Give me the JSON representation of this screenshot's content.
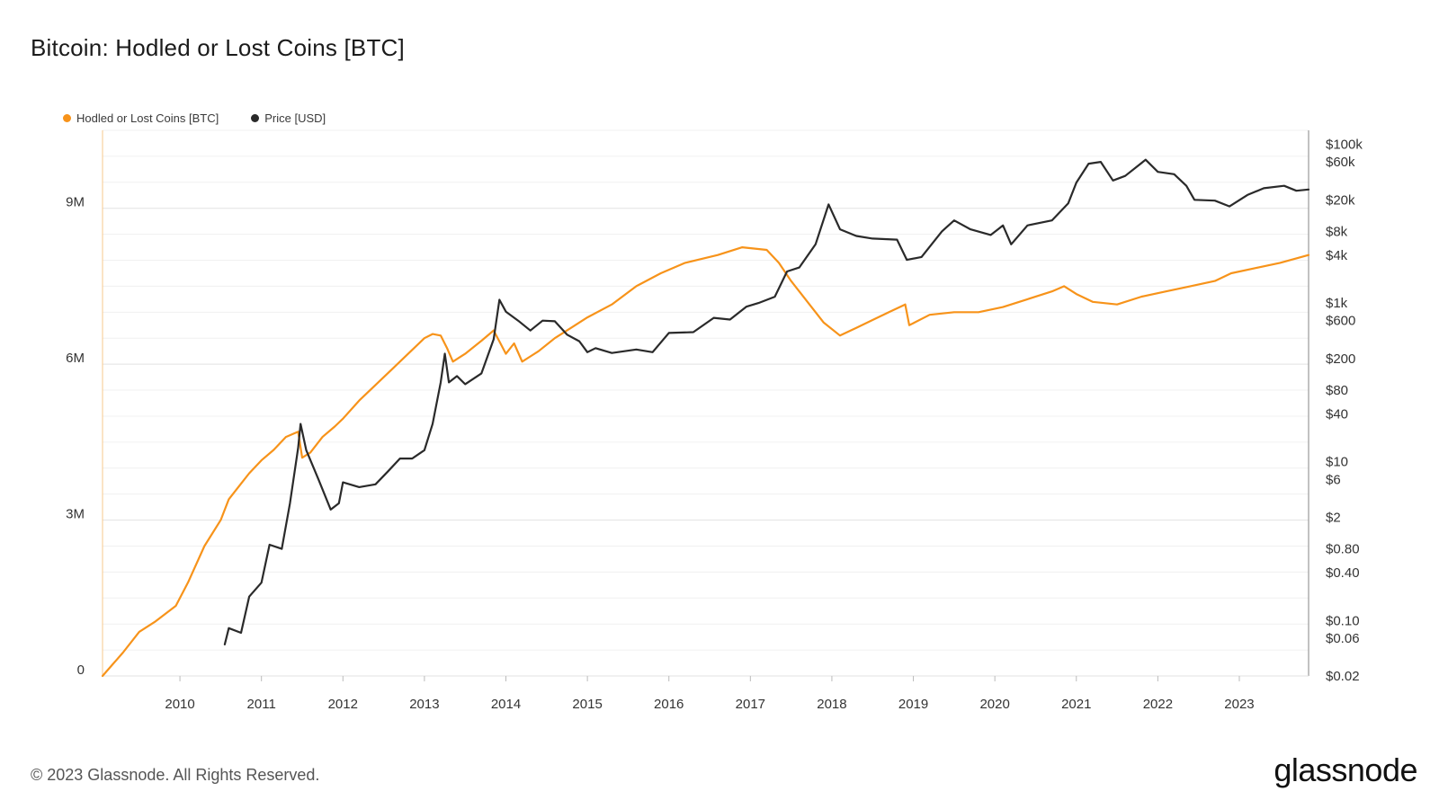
{
  "chart_data": {
    "type": "line",
    "title": "Bitcoin: Hodled or Lost Coins [BTC]",
    "grid": true,
    "legend_placement": "top-left",
    "x_ticks": [
      "2010",
      "2011",
      "2012",
      "2013",
      "2014",
      "2015",
      "2016",
      "2017",
      "2018",
      "2019",
      "2020",
      "2021",
      "2022",
      "2023"
    ],
    "x_range": [
      2009.05,
      2023.85
    ],
    "left_axis": {
      "ticks": [
        {
          "v": 0,
          "label": "0"
        },
        {
          "v": 3000000,
          "label": "3M"
        },
        {
          "v": 6000000,
          "label": "6M"
        },
        {
          "v": 9000000,
          "label": "9M"
        }
      ],
      "range": [
        0,
        10500000
      ]
    },
    "right_axis": {
      "scale": "log",
      "ticks": [
        {
          "v": 100000,
          "label": "$100k"
        },
        {
          "v": 60000,
          "label": "$60k"
        },
        {
          "v": 20000,
          "label": "$20k"
        },
        {
          "v": 8000,
          "label": "$8k"
        },
        {
          "v": 4000,
          "label": "$4k"
        },
        {
          "v": 1000,
          "label": "$1k"
        },
        {
          "v": 600,
          "label": "$600"
        },
        {
          "v": 200,
          "label": "$200"
        },
        {
          "v": 80,
          "label": "$80"
        },
        {
          "v": 40,
          "label": "$40"
        },
        {
          "v": 10,
          "label": "$10"
        },
        {
          "v": 6,
          "label": "$6"
        },
        {
          "v": 2,
          "label": "$2"
        },
        {
          "v": 0.8,
          "label": "$0.80"
        },
        {
          "v": 0.4,
          "label": "$0.40"
        },
        {
          "v": 0.1,
          "label": "$0.10"
        },
        {
          "v": 0.06,
          "label": "$0.06"
        },
        {
          "v": 0.02,
          "label": "$0.02"
        }
      ],
      "range": [
        0.02,
        150000
      ]
    },
    "series": [
      {
        "name": "Hodled or Lost Coins [BTC]",
        "color": "#f7931a",
        "axis": "left",
        "points": [
          [
            2009.05,
            0
          ],
          [
            2009.3,
            450000
          ],
          [
            2009.5,
            850000
          ],
          [
            2009.7,
            1050000
          ],
          [
            2009.95,
            1350000
          ],
          [
            2010.1,
            1800000
          ],
          [
            2010.3,
            2500000
          ],
          [
            2010.5,
            3000000
          ],
          [
            2010.6,
            3400000
          ],
          [
            2010.75,
            3700000
          ],
          [
            2010.85,
            3900000
          ],
          [
            2011.0,
            4150000
          ],
          [
            2011.15,
            4350000
          ],
          [
            2011.3,
            4600000
          ],
          [
            2011.45,
            4700000
          ],
          [
            2011.5,
            4200000
          ],
          [
            2011.6,
            4300000
          ],
          [
            2011.75,
            4600000
          ],
          [
            2011.9,
            4800000
          ],
          [
            2012.0,
            4950000
          ],
          [
            2012.2,
            5300000
          ],
          [
            2012.4,
            5600000
          ],
          [
            2012.6,
            5900000
          ],
          [
            2012.8,
            6200000
          ],
          [
            2013.0,
            6500000
          ],
          [
            2013.1,
            6580000
          ],
          [
            2013.2,
            6550000
          ],
          [
            2013.28,
            6300000
          ],
          [
            2013.35,
            6050000
          ],
          [
            2013.5,
            6200000
          ],
          [
            2013.7,
            6450000
          ],
          [
            2013.85,
            6650000
          ],
          [
            2013.9,
            6500000
          ],
          [
            2014.0,
            6200000
          ],
          [
            2014.1,
            6400000
          ],
          [
            2014.2,
            6050000
          ],
          [
            2014.3,
            6150000
          ],
          [
            2014.4,
            6250000
          ],
          [
            2014.6,
            6500000
          ],
          [
            2014.8,
            6700000
          ],
          [
            2015.0,
            6900000
          ],
          [
            2015.3,
            7150000
          ],
          [
            2015.6,
            7500000
          ],
          [
            2015.9,
            7750000
          ],
          [
            2016.2,
            7950000
          ],
          [
            2016.6,
            8100000
          ],
          [
            2016.9,
            8250000
          ],
          [
            2017.2,
            8200000
          ],
          [
            2017.35,
            7950000
          ],
          [
            2017.5,
            7600000
          ],
          [
            2017.7,
            7200000
          ],
          [
            2017.9,
            6800000
          ],
          [
            2018.1,
            6550000
          ],
          [
            2018.3,
            6700000
          ],
          [
            2018.5,
            6850000
          ],
          [
            2018.7,
            7000000
          ],
          [
            2018.9,
            7150000
          ],
          [
            2018.95,
            6750000
          ],
          [
            2019.2,
            6950000
          ],
          [
            2019.5,
            7000000
          ],
          [
            2019.8,
            7000000
          ],
          [
            2020.1,
            7100000
          ],
          [
            2020.4,
            7250000
          ],
          [
            2020.7,
            7400000
          ],
          [
            2020.85,
            7500000
          ],
          [
            2021.0,
            7350000
          ],
          [
            2021.2,
            7200000
          ],
          [
            2021.5,
            7150000
          ],
          [
            2021.8,
            7300000
          ],
          [
            2022.1,
            7400000
          ],
          [
            2022.4,
            7500000
          ],
          [
            2022.7,
            7600000
          ],
          [
            2022.9,
            7750000
          ],
          [
            2023.2,
            7850000
          ],
          [
            2023.5,
            7950000
          ],
          [
            2023.85,
            8100000
          ]
        ]
      },
      {
        "name": "Price [USD]",
        "color": "#2a2a2a",
        "axis": "right",
        "points": [
          [
            2010.55,
            0.05
          ],
          [
            2010.6,
            0.08
          ],
          [
            2010.75,
            0.07
          ],
          [
            2010.85,
            0.2
          ],
          [
            2011.0,
            0.3
          ],
          [
            2011.1,
            0.9
          ],
          [
            2011.25,
            0.8
          ],
          [
            2011.35,
            3
          ],
          [
            2011.45,
            15
          ],
          [
            2011.48,
            30
          ],
          [
            2011.55,
            14
          ],
          [
            2011.7,
            6
          ],
          [
            2011.85,
            2.5
          ],
          [
            2011.95,
            3
          ],
          [
            2012.0,
            5.5
          ],
          [
            2012.2,
            4.8
          ],
          [
            2012.4,
            5.2
          ],
          [
            2012.55,
            7.5
          ],
          [
            2012.7,
            11
          ],
          [
            2012.85,
            11
          ],
          [
            2013.0,
            14
          ],
          [
            2013.1,
            30
          ],
          [
            2013.2,
            100
          ],
          [
            2013.25,
            230
          ],
          [
            2013.3,
            100
          ],
          [
            2013.4,
            120
          ],
          [
            2013.5,
            95
          ],
          [
            2013.7,
            130
          ],
          [
            2013.85,
            350
          ],
          [
            2013.92,
            1100
          ],
          [
            2014.0,
            780
          ],
          [
            2014.15,
            600
          ],
          [
            2014.3,
            450
          ],
          [
            2014.45,
            600
          ],
          [
            2014.6,
            590
          ],
          [
            2014.75,
            400
          ],
          [
            2014.9,
            330
          ],
          [
            2015.0,
            240
          ],
          [
            2015.1,
            270
          ],
          [
            2015.3,
            235
          ],
          [
            2015.6,
            260
          ],
          [
            2015.8,
            240
          ],
          [
            2016.0,
            420
          ],
          [
            2016.3,
            430
          ],
          [
            2016.55,
            650
          ],
          [
            2016.75,
            620
          ],
          [
            2016.95,
            900
          ],
          [
            2017.1,
            1000
          ],
          [
            2017.3,
            1200
          ],
          [
            2017.45,
            2500
          ],
          [
            2017.6,
            2800
          ],
          [
            2017.8,
            5500
          ],
          [
            2017.96,
            17500
          ],
          [
            2018.1,
            8500
          ],
          [
            2018.3,
            7000
          ],
          [
            2018.5,
            6500
          ],
          [
            2018.8,
            6300
          ],
          [
            2018.92,
            3500
          ],
          [
            2019.1,
            3800
          ],
          [
            2019.35,
            8000
          ],
          [
            2019.5,
            11000
          ],
          [
            2019.7,
            8500
          ],
          [
            2019.95,
            7200
          ],
          [
            2020.1,
            9500
          ],
          [
            2020.2,
            5500
          ],
          [
            2020.4,
            9500
          ],
          [
            2020.7,
            11000
          ],
          [
            2020.9,
            18000
          ],
          [
            2021.0,
            33000
          ],
          [
            2021.15,
            57000
          ],
          [
            2021.3,
            60000
          ],
          [
            2021.45,
            35000
          ],
          [
            2021.6,
            40000
          ],
          [
            2021.85,
            64000
          ],
          [
            2022.0,
            45000
          ],
          [
            2022.2,
            42000
          ],
          [
            2022.35,
            30000
          ],
          [
            2022.45,
            20000
          ],
          [
            2022.7,
            19500
          ],
          [
            2022.88,
            16500
          ],
          [
            2023.1,
            23000
          ],
          [
            2023.3,
            28000
          ],
          [
            2023.55,
            30000
          ],
          [
            2023.7,
            26000
          ],
          [
            2023.85,
            27000
          ]
        ]
      }
    ]
  },
  "legend": {
    "items": [
      {
        "label": "Hodled or Lost Coins [BTC]",
        "color": "#f7931a"
      },
      {
        "label": "Price [USD]",
        "color": "#2a2a2a"
      }
    ]
  },
  "footer": {
    "copyright": "© 2023 Glassnode. All Rights Reserved.",
    "brand": "glassnode"
  }
}
